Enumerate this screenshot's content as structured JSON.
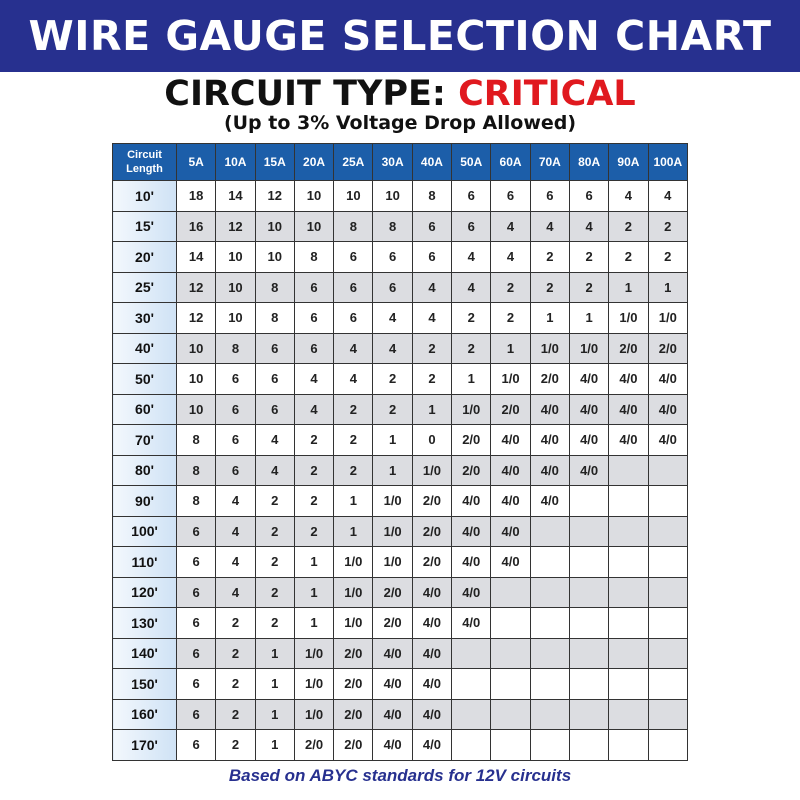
{
  "banner_title": "WIRE GAUGE SELECTION CHART",
  "circuit_type_label": "CIRCUIT TYPE:",
  "circuit_type_value": "CRITICAL",
  "subtitle": "(Up to 3% Voltage Drop Allowed)",
  "footer": "Based on ABYC standards for 12V circuits",
  "colors": {
    "banner": "#27308f",
    "critical": "#e0191f",
    "header": "#1c5ea9",
    "alt_row": "#dcdde1"
  },
  "table": {
    "corner_header": "Circuit Length",
    "columns": [
      "5A",
      "10A",
      "15A",
      "20A",
      "25A",
      "30A",
      "40A",
      "50A",
      "60A",
      "70A",
      "80A",
      "90A",
      "100A"
    ],
    "rows": [
      {
        "length": "10'",
        "values": [
          "18",
          "14",
          "12",
          "10",
          "10",
          "10",
          "8",
          "6",
          "6",
          "6",
          "6",
          "4",
          "4"
        ]
      },
      {
        "length": "15'",
        "values": [
          "16",
          "12",
          "10",
          "10",
          "8",
          "8",
          "6",
          "6",
          "4",
          "4",
          "4",
          "2",
          "2"
        ]
      },
      {
        "length": "20'",
        "values": [
          "14",
          "10",
          "10",
          "8",
          "6",
          "6",
          "6",
          "4",
          "4",
          "2",
          "2",
          "2",
          "2"
        ]
      },
      {
        "length": "25'",
        "values": [
          "12",
          "10",
          "8",
          "6",
          "6",
          "6",
          "4",
          "4",
          "2",
          "2",
          "2",
          "1",
          "1"
        ]
      },
      {
        "length": "30'",
        "values": [
          "12",
          "10",
          "8",
          "6",
          "6",
          "4",
          "4",
          "2",
          "2",
          "1",
          "1",
          "1/0",
          "1/0"
        ]
      },
      {
        "length": "40'",
        "values": [
          "10",
          "8",
          "6",
          "6",
          "4",
          "4",
          "2",
          "2",
          "1",
          "1/0",
          "1/0",
          "2/0",
          "2/0"
        ]
      },
      {
        "length": "50'",
        "values": [
          "10",
          "6",
          "6",
          "4",
          "4",
          "2",
          "2",
          "1",
          "1/0",
          "2/0",
          "4/0",
          "4/0",
          "4/0"
        ]
      },
      {
        "length": "60'",
        "values": [
          "10",
          "6",
          "6",
          "4",
          "2",
          "2",
          "1",
          "1/0",
          "2/0",
          "4/0",
          "4/0",
          "4/0",
          "4/0"
        ]
      },
      {
        "length": "70'",
        "values": [
          "8",
          "6",
          "4",
          "2",
          "2",
          "1",
          "0",
          "2/0",
          "4/0",
          "4/0",
          "4/0",
          "4/0",
          "4/0"
        ]
      },
      {
        "length": "80'",
        "values": [
          "8",
          "6",
          "4",
          "2",
          "2",
          "1",
          "1/0",
          "2/0",
          "4/0",
          "4/0",
          "4/0",
          "",
          ""
        ]
      },
      {
        "length": "90'",
        "values": [
          "8",
          "4",
          "2",
          "2",
          "1",
          "1/0",
          "2/0",
          "4/0",
          "4/0",
          "4/0",
          "",
          "",
          ""
        ]
      },
      {
        "length": "100'",
        "values": [
          "6",
          "4",
          "2",
          "2",
          "1",
          "1/0",
          "2/0",
          "4/0",
          "4/0",
          "",
          "",
          "",
          ""
        ]
      },
      {
        "length": "110'",
        "values": [
          "6",
          "4",
          "2",
          "1",
          "1/0",
          "1/0",
          "2/0",
          "4/0",
          "4/0",
          "",
          "",
          "",
          ""
        ]
      },
      {
        "length": "120'",
        "values": [
          "6",
          "4",
          "2",
          "1",
          "1/0",
          "2/0",
          "4/0",
          "4/0",
          "",
          "",
          "",
          "",
          ""
        ]
      },
      {
        "length": "130'",
        "values": [
          "6",
          "2",
          "2",
          "1",
          "1/0",
          "2/0",
          "4/0",
          "4/0",
          "",
          "",
          "",
          "",
          ""
        ]
      },
      {
        "length": "140'",
        "values": [
          "6",
          "2",
          "1",
          "1/0",
          "2/0",
          "4/0",
          "4/0",
          "",
          "",
          "",
          "",
          "",
          ""
        ]
      },
      {
        "length": "150'",
        "values": [
          "6",
          "2",
          "1",
          "1/0",
          "2/0",
          "4/0",
          "4/0",
          "",
          "",
          "",
          "",
          "",
          ""
        ]
      },
      {
        "length": "160'",
        "values": [
          "6",
          "2",
          "1",
          "1/0",
          "2/0",
          "4/0",
          "4/0",
          "",
          "",
          "",
          "",
          "",
          ""
        ]
      },
      {
        "length": "170'",
        "values": [
          "6",
          "2",
          "1",
          "2/0",
          "2/0",
          "4/0",
          "4/0",
          "",
          "",
          "",
          "",
          "",
          ""
        ]
      }
    ]
  }
}
